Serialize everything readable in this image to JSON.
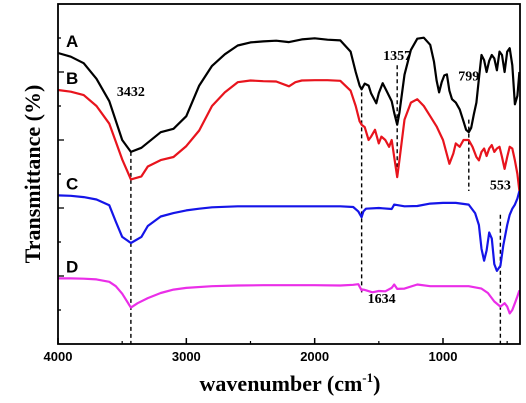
{
  "chart_data": {
    "type": "line",
    "xlabel": "wavenumber (cm",
    "xlabel_sup": "-1",
    "xlabel_close": ")",
    "ylabel": "Transmittance (%)",
    "x_reversed": true,
    "xlim": [
      4000,
      400
    ],
    "ylim": [
      0,
      1
    ],
    "xticks": [
      4000,
      3000,
      2000,
      1000
    ],
    "y_ticks_labeled": false,
    "grid": false,
    "legend": "none",
    "series": [
      {
        "name": "A",
        "color": "#000000",
        "points": [
          [
            4000,
            0.856
          ],
          [
            3900,
            0.845
          ],
          [
            3800,
            0.826
          ],
          [
            3700,
            0.78
          ],
          [
            3600,
            0.714
          ],
          [
            3500,
            0.6
          ],
          [
            3432,
            0.565
          ],
          [
            3350,
            0.577
          ],
          [
            3200,
            0.623
          ],
          [
            3100,
            0.633
          ],
          [
            3000,
            0.67
          ],
          [
            2900,
            0.76
          ],
          [
            2800,
            0.818
          ],
          [
            2700,
            0.852
          ],
          [
            2600,
            0.878
          ],
          [
            2500,
            0.887
          ],
          [
            2400,
            0.89
          ],
          [
            2300,
            0.892
          ],
          [
            2200,
            0.888
          ],
          [
            2100,
            0.896
          ],
          [
            2000,
            0.899
          ],
          [
            1900,
            0.895
          ],
          [
            1800,
            0.893
          ],
          [
            1720,
            0.86
          ],
          [
            1680,
            0.8
          ],
          [
            1650,
            0.76
          ],
          [
            1634,
            0.749
          ],
          [
            1610,
            0.766
          ],
          [
            1580,
            0.76
          ],
          [
            1560,
            0.737
          ],
          [
            1520,
            0.708
          ],
          [
            1500,
            0.738
          ],
          [
            1470,
            0.767
          ],
          [
            1440,
            0.745
          ],
          [
            1400,
            0.714
          ],
          [
            1380,
            0.68
          ],
          [
            1357,
            0.645
          ],
          [
            1340,
            0.68
          ],
          [
            1300,
            0.792
          ],
          [
            1250,
            0.865
          ],
          [
            1200,
            0.898
          ],
          [
            1150,
            0.901
          ],
          [
            1100,
            0.88
          ],
          [
            1070,
            0.83
          ],
          [
            1050,
            0.775
          ],
          [
            1030,
            0.74
          ],
          [
            1010,
            0.77
          ],
          [
            990,
            0.79
          ],
          [
            970,
            0.793
          ],
          [
            950,
            0.745
          ],
          [
            930,
            0.72
          ],
          [
            900,
            0.71
          ],
          [
            870,
            0.69
          ],
          [
            840,
            0.655
          ],
          [
            820,
            0.63
          ],
          [
            799,
            0.623
          ],
          [
            780,
            0.636
          ],
          [
            760,
            0.675
          ],
          [
            740,
            0.71
          ],
          [
            720,
            0.78
          ],
          [
            700,
            0.85
          ],
          [
            680,
            0.835
          ],
          [
            660,
            0.8
          ],
          [
            640,
            0.833
          ],
          [
            620,
            0.85
          ],
          [
            600,
            0.84
          ],
          [
            580,
            0.805
          ],
          [
            560,
            0.86
          ],
          [
            540,
            0.85
          ],
          [
            520,
            0.8
          ],
          [
            500,
            0.86
          ],
          [
            480,
            0.87
          ],
          [
            460,
            0.82
          ],
          [
            440,
            0.705
          ],
          [
            420,
            0.73
          ],
          [
            405,
            0.8
          ]
        ]
      },
      {
        "name": "B",
        "color": "#e8141d",
        "points": [
          [
            4000,
            0.747
          ],
          [
            3900,
            0.742
          ],
          [
            3800,
            0.732
          ],
          [
            3700,
            0.7
          ],
          [
            3600,
            0.648
          ],
          [
            3500,
            0.543
          ],
          [
            3432,
            0.484
          ],
          [
            3350,
            0.493
          ],
          [
            3300,
            0.522
          ],
          [
            3200,
            0.541
          ],
          [
            3100,
            0.55
          ],
          [
            3000,
            0.582
          ],
          [
            2900,
            0.628
          ],
          [
            2800,
            0.7
          ],
          [
            2700,
            0.74
          ],
          [
            2600,
            0.77
          ],
          [
            2500,
            0.775
          ],
          [
            2400,
            0.773
          ],
          [
            2300,
            0.772
          ],
          [
            2200,
            0.758
          ],
          [
            2150,
            0.77
          ],
          [
            2100,
            0.775
          ],
          [
            2000,
            0.776
          ],
          [
            1900,
            0.776
          ],
          [
            1800,
            0.774
          ],
          [
            1720,
            0.745
          ],
          [
            1680,
            0.7
          ],
          [
            1650,
            0.655
          ],
          [
            1634,
            0.645
          ],
          [
            1610,
            0.638
          ],
          [
            1580,
            0.6
          ],
          [
            1560,
            0.61
          ],
          [
            1530,
            0.63
          ],
          [
            1500,
            0.59
          ],
          [
            1480,
            0.61
          ],
          [
            1450,
            0.6
          ],
          [
            1420,
            0.58
          ],
          [
            1400,
            0.6
          ],
          [
            1380,
            0.55
          ],
          [
            1357,
            0.491
          ],
          [
            1340,
            0.54
          ],
          [
            1300,
            0.66
          ],
          [
            1250,
            0.71
          ],
          [
            1200,
            0.72
          ],
          [
            1150,
            0.7
          ],
          [
            1100,
            0.67
          ],
          [
            1050,
            0.64
          ],
          [
            1000,
            0.6
          ],
          [
            950,
            0.53
          ],
          [
            920,
            0.56
          ],
          [
            900,
            0.59
          ],
          [
            870,
            0.58
          ],
          [
            840,
            0.6
          ],
          [
            800,
            0.6
          ],
          [
            770,
            0.58
          ],
          [
            740,
            0.55
          ],
          [
            720,
            0.54
          ],
          [
            700,
            0.565
          ],
          [
            680,
            0.575
          ],
          [
            660,
            0.553
          ],
          [
            640,
            0.575
          ],
          [
            620,
            0.585
          ],
          [
            600,
            0.565
          ],
          [
            580,
            0.575
          ],
          [
            560,
            0.58
          ],
          [
            540,
            0.55
          ],
          [
            520,
            0.515
          ],
          [
            500,
            0.55
          ],
          [
            480,
            0.58
          ],
          [
            460,
            0.575
          ],
          [
            440,
            0.54
          ],
          [
            420,
            0.5
          ],
          [
            405,
            0.45
          ]
        ]
      },
      {
        "name": "C",
        "color": "#1515e8",
        "points": [
          [
            4000,
            0.437
          ],
          [
            3900,
            0.436
          ],
          [
            3800,
            0.432
          ],
          [
            3700,
            0.425
          ],
          [
            3600,
            0.408
          ],
          [
            3550,
            0.36
          ],
          [
            3500,
            0.315
          ],
          [
            3432,
            0.297
          ],
          [
            3350,
            0.315
          ],
          [
            3300,
            0.347
          ],
          [
            3200,
            0.375
          ],
          [
            3100,
            0.385
          ],
          [
            3000,
            0.393
          ],
          [
            2900,
            0.398
          ],
          [
            2800,
            0.402
          ],
          [
            2600,
            0.405
          ],
          [
            2400,
            0.405
          ],
          [
            2200,
            0.405
          ],
          [
            2000,
            0.405
          ],
          [
            1800,
            0.405
          ],
          [
            1700,
            0.403
          ],
          [
            1660,
            0.39
          ],
          [
            1634,
            0.373
          ],
          [
            1620,
            0.39
          ],
          [
            1600,
            0.398
          ],
          [
            1500,
            0.4
          ],
          [
            1400,
            0.397
          ],
          [
            1380,
            0.41
          ],
          [
            1300,
            0.405
          ],
          [
            1200,
            0.406
          ],
          [
            1100,
            0.413
          ],
          [
            1000,
            0.415
          ],
          [
            900,
            0.415
          ],
          [
            800,
            0.41
          ],
          [
            750,
            0.385
          ],
          [
            720,
            0.35
          ],
          [
            700,
            0.28
          ],
          [
            680,
            0.245
          ],
          [
            660,
            0.275
          ],
          [
            640,
            0.328
          ],
          [
            620,
            0.31
          ],
          [
            600,
            0.235
          ],
          [
            580,
            0.215
          ],
          [
            553,
            0.23
          ],
          [
            530,
            0.29
          ],
          [
            500,
            0.35
          ],
          [
            480,
            0.38
          ],
          [
            460,
            0.398
          ],
          [
            440,
            0.41
          ],
          [
            420,
            0.428
          ],
          [
            405,
            0.45
          ]
        ]
      },
      {
        "name": "D",
        "color": "#ea2ee8",
        "points": [
          [
            4000,
            0.193
          ],
          [
            3900,
            0.193
          ],
          [
            3800,
            0.192
          ],
          [
            3700,
            0.19
          ],
          [
            3600,
            0.183
          ],
          [
            3550,
            0.17
          ],
          [
            3500,
            0.148
          ],
          [
            3432,
            0.107
          ],
          [
            3380,
            0.12
          ],
          [
            3300,
            0.135
          ],
          [
            3200,
            0.15
          ],
          [
            3100,
            0.16
          ],
          [
            3000,
            0.165
          ],
          [
            2800,
            0.17
          ],
          [
            2600,
            0.172
          ],
          [
            2400,
            0.173
          ],
          [
            2200,
            0.173
          ],
          [
            2000,
            0.173
          ],
          [
            1800,
            0.172
          ],
          [
            1700,
            0.174
          ],
          [
            1660,
            0.176
          ],
          [
            1634,
            0.158
          ],
          [
            1620,
            0.16
          ],
          [
            1600,
            0.158
          ],
          [
            1550,
            0.152
          ],
          [
            1500,
            0.156
          ],
          [
            1450,
            0.155
          ],
          [
            1400,
            0.165
          ],
          [
            1380,
            0.175
          ],
          [
            1357,
            0.162
          ],
          [
            1300,
            0.163
          ],
          [
            1200,
            0.175
          ],
          [
            1100,
            0.17
          ],
          [
            1000,
            0.17
          ],
          [
            900,
            0.17
          ],
          [
            800,
            0.17
          ],
          [
            700,
            0.163
          ],
          [
            650,
            0.15
          ],
          [
            600,
            0.125
          ],
          [
            553,
            0.11
          ],
          [
            520,
            0.12
          ],
          [
            500,
            0.11
          ],
          [
            480,
            0.09
          ],
          [
            460,
            0.1
          ],
          [
            440,
            0.12
          ],
          [
            420,
            0.14
          ],
          [
            405,
            0.158
          ]
        ]
      }
    ],
    "annotations": [
      {
        "text": "3432",
        "x": 3432
      },
      {
        "text": "1357",
        "x": 1357
      },
      {
        "text": "799",
        "x": 799
      },
      {
        "text": "553",
        "x": 553
      },
      {
        "text": "1634",
        "x": 1634
      }
    ]
  }
}
